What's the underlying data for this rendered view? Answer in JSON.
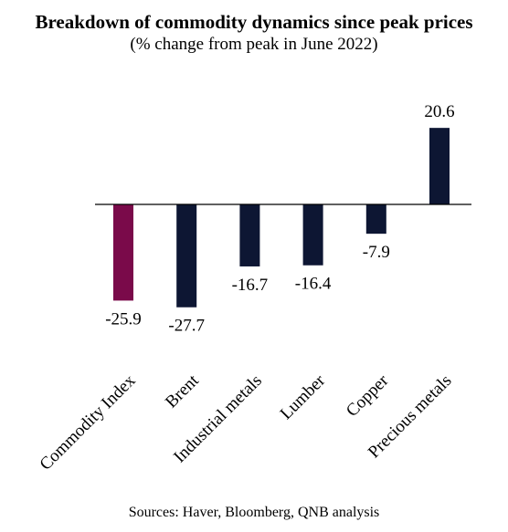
{
  "title": "Breakdown of commodity dynamics since peak prices",
  "subtitle": "(% change from peak in June 2022)",
  "source": "Sources: Haver, Bloomberg, QNB analysis",
  "colors": {
    "highlight": "#7a0a4a",
    "bar": "#0d1633",
    "axis": "#000000"
  },
  "chart_data": {
    "type": "bar",
    "title": "Breakdown of commodity dynamics since peak prices",
    "subtitle": "(% change from peak in June 2022)",
    "categories": [
      "Commodity Index",
      "Brent",
      "Industrial metals",
      "Lumber",
      "Copper",
      "Precious metals"
    ],
    "values": [
      -25.9,
      -27.7,
      -16.7,
      -16.4,
      -7.9,
      20.6
    ],
    "data_labels": [
      "-25.9",
      "-27.7",
      "-16.7",
      "-16.4",
      "-7.9",
      "20.6"
    ],
    "highlighted_category": "Commodity Index",
    "xlabel": "",
    "ylabel": "",
    "y_axis_shown": false,
    "grid": false,
    "legend": "none"
  }
}
